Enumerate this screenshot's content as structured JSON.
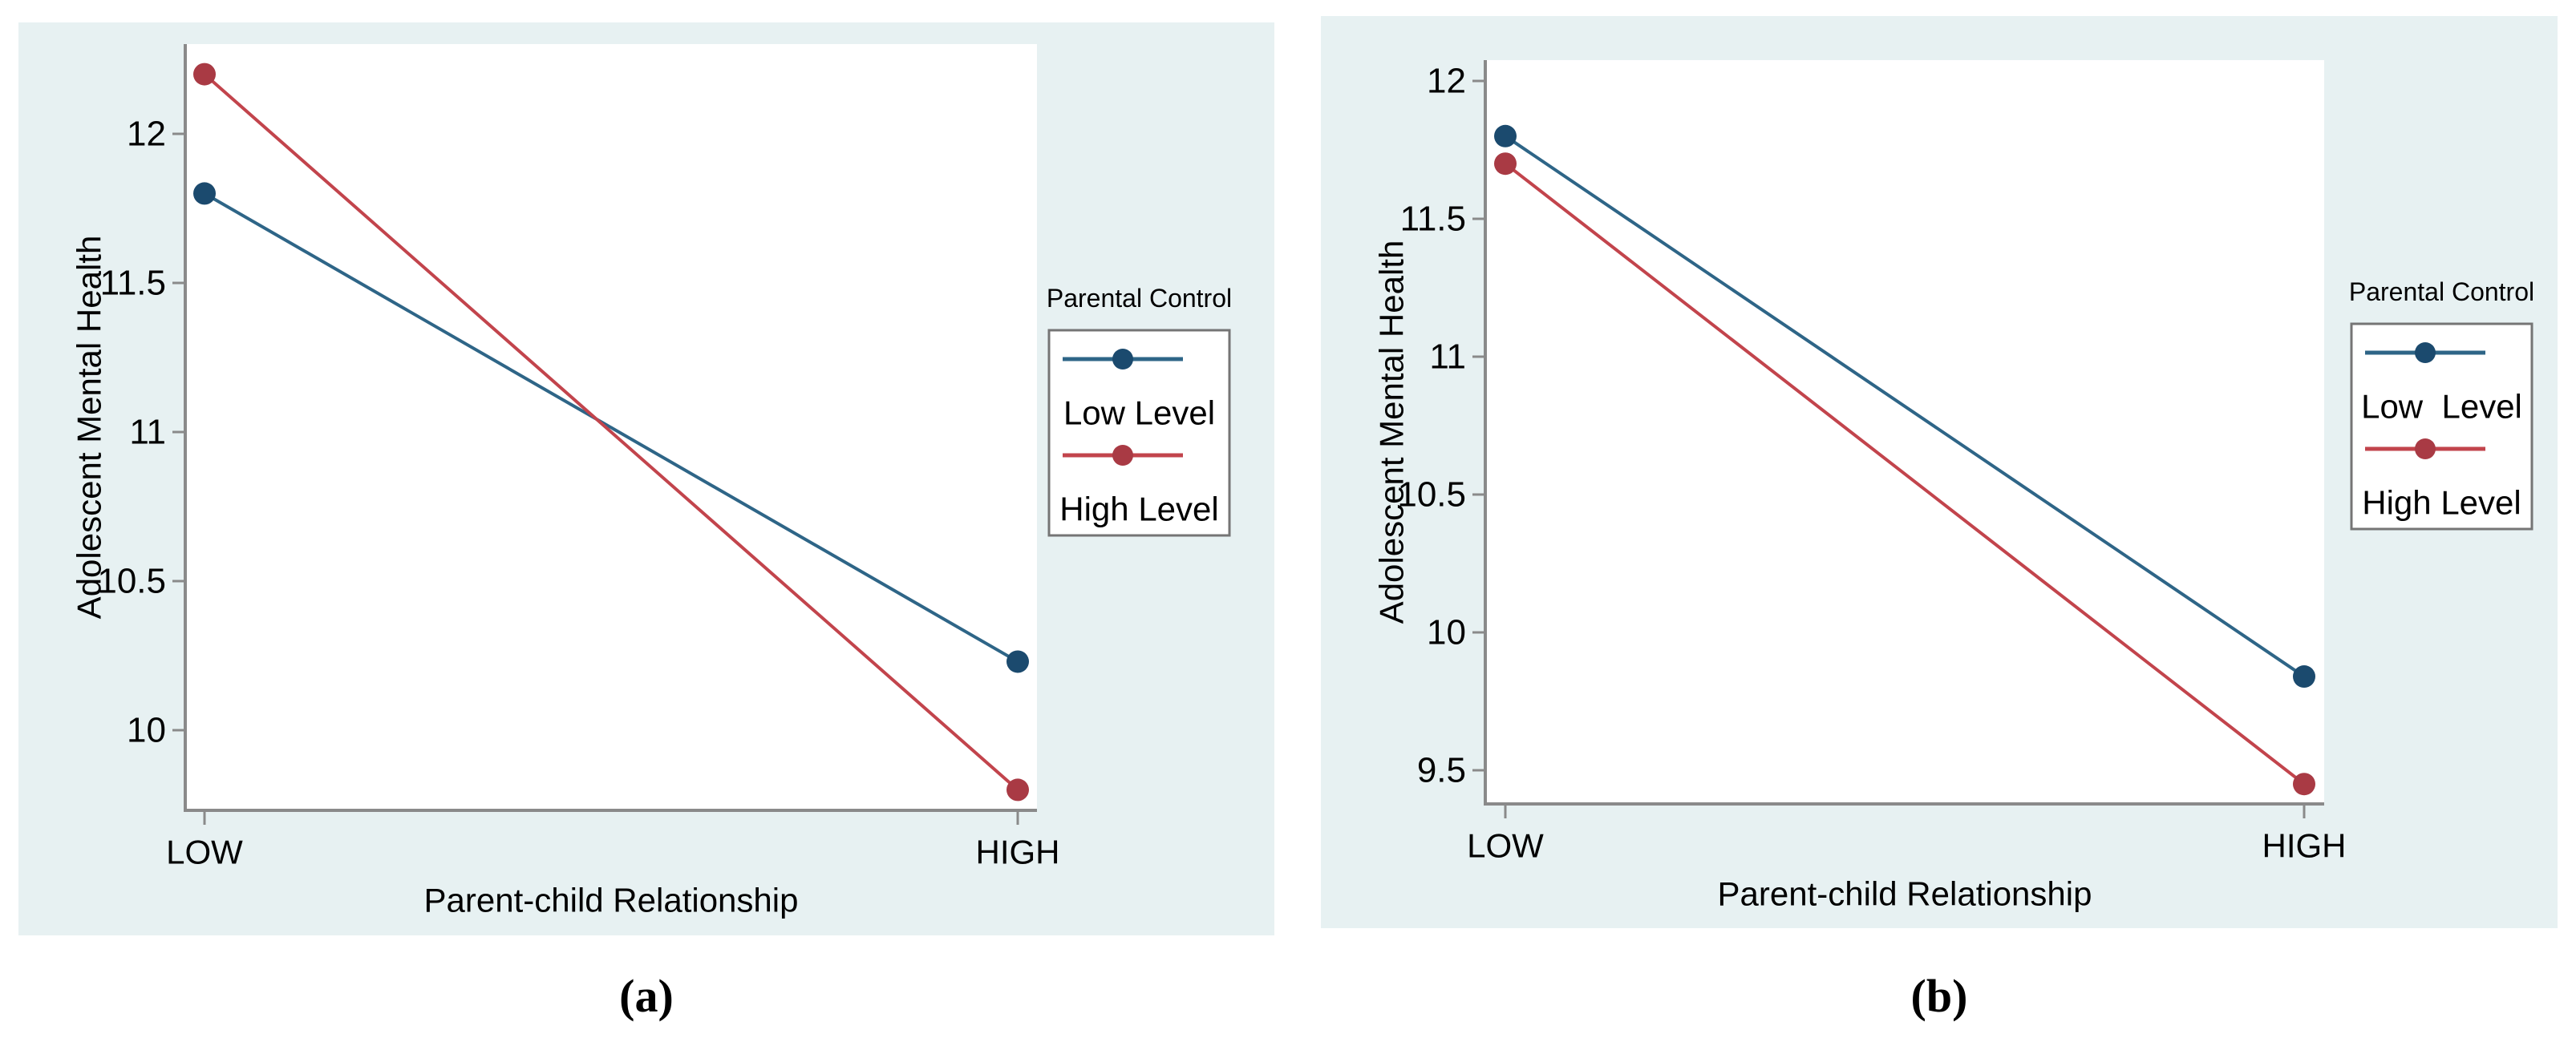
{
  "figure": {
    "panel_background": "#e7f1f2",
    "plot_background": "#ffffff",
    "axis_color": "#8a8a8a",
    "colors": {
      "text": "#000000",
      "blue_line": "#2e6587",
      "blue_dot": "#1b4a6e",
      "red_line": "#c2444c",
      "red_dot": "#a93a44",
      "legend_border": "#757575"
    }
  },
  "chart_data": [
    {
      "id": "a",
      "type": "line",
      "caption": "(a)",
      "xlabel": "Parent-child Relationship",
      "ylabel": "Adolescent Mental Health",
      "categories": [
        "LOW",
        "HIGH"
      ],
      "y_ticks": [
        "12",
        "11.5",
        "11",
        "10.5",
        "10"
      ],
      "ylim": [
        9.73,
        12.3
      ],
      "grid": false,
      "legend": {
        "title": "Parental Control",
        "position": "right",
        "entries": [
          {
            "label": "Low Level",
            "color": "blue"
          },
          {
            "label": "High Level",
            "color": "red"
          }
        ]
      },
      "series": [
        {
          "name": "Low Level",
          "color": "blue",
          "values": [
            11.8,
            10.23
          ]
        },
        {
          "name": "High Level",
          "color": "red",
          "values": [
            12.2,
            9.8
          ]
        }
      ]
    },
    {
      "id": "b",
      "type": "line",
      "caption": "(b)",
      "xlabel": "Parent-child Relationship",
      "ylabel": "Adolescent Mental Health",
      "categories": [
        "LOW",
        "HIGH"
      ],
      "y_ticks": [
        "12",
        "11.5",
        "11",
        "10.5",
        "10",
        "9.5"
      ],
      "ylim": [
        9.38,
        12.08
      ],
      "grid": false,
      "legend": {
        "title": "Parental Control",
        "position": "right",
        "entries": [
          {
            "label": "Low  Level",
            "color": "blue"
          },
          {
            "label": "High Level",
            "color": "red"
          }
        ]
      },
      "series": [
        {
          "name": "Low Level",
          "color": "blue",
          "values": [
            11.8,
            9.84
          ]
        },
        {
          "name": "High Level",
          "color": "red",
          "values": [
            11.7,
            9.45
          ]
        }
      ]
    }
  ]
}
